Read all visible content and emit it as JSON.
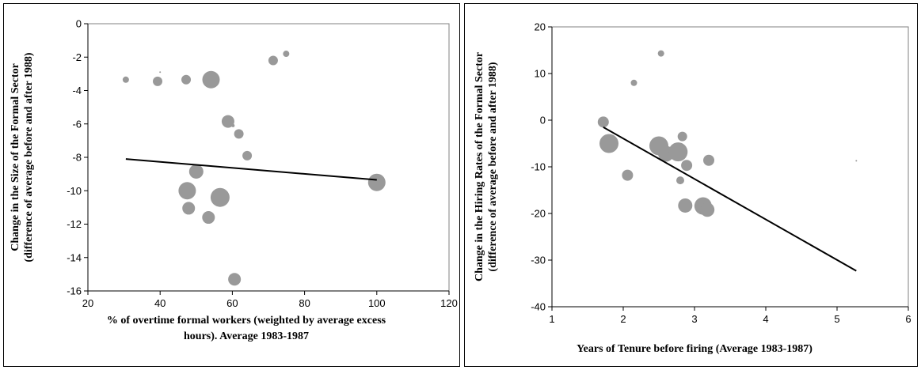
{
  "chart_data": [
    {
      "type": "scatter",
      "title": "",
      "xlabel_lines": [
        "% of overtime formal workers (weighted by average excess",
        "hours). Average 1983-1987"
      ],
      "ylabel_lines": [
        "Change in the Size of the Formal Sector",
        "(difference of average before and after 1988)"
      ],
      "xlim": [
        20,
        120
      ],
      "ylim": [
        -16,
        0
      ],
      "xticks": [
        20,
        40,
        60,
        80,
        100,
        120
      ],
      "yticks": [
        0,
        -2,
        -4,
        -6,
        -8,
        -10,
        -12,
        -14,
        -16
      ],
      "grid": false,
      "marker_color": "#999999",
      "line_color": "#000000",
      "points": [
        {
          "x": 30.5,
          "y": -3.35,
          "size": 4
        },
        {
          "x": 40.0,
          "y": -2.9,
          "size": 1
        },
        {
          "x": 39.3,
          "y": -3.45,
          "size": 6
        },
        {
          "x": 47.2,
          "y": -3.35,
          "size": 6
        },
        {
          "x": 54.1,
          "y": -3.35,
          "size": 11
        },
        {
          "x": 71.3,
          "y": -2.2,
          "size": 6
        },
        {
          "x": 74.9,
          "y": -1.8,
          "size": 4
        },
        {
          "x": 58.8,
          "y": -5.85,
          "size": 8
        },
        {
          "x": 60.2,
          "y": -6.1,
          "size": 2
        },
        {
          "x": 61.8,
          "y": -6.6,
          "size": 6
        },
        {
          "x": 64.1,
          "y": -7.9,
          "size": 6
        },
        {
          "x": 50.0,
          "y": -8.85,
          "size": 9
        },
        {
          "x": 47.5,
          "y": -10.0,
          "size": 11
        },
        {
          "x": 56.6,
          "y": -10.4,
          "size": 12
        },
        {
          "x": 47.9,
          "y": -11.05,
          "size": 8
        },
        {
          "x": 53.4,
          "y": -11.6,
          "size": 8
        },
        {
          "x": 60.6,
          "y": -15.3,
          "size": 8
        },
        {
          "x": 100.0,
          "y": -9.5,
          "size": 11
        }
      ],
      "trendline": {
        "x": [
          30.5,
          100
        ],
        "y": [
          -8.1,
          -9.35
        ]
      }
    },
    {
      "type": "scatter",
      "title": "",
      "xlabel_lines": [
        "Years of Tenure before firing (Average 1983-1987)"
      ],
      "ylabel_lines": [
        "Change in the Hiring Rates of the Formal Sector",
        "(difference of average before and after 1988)"
      ],
      "xlim": [
        1,
        6
      ],
      "ylim": [
        -40,
        20
      ],
      "xticks": [
        1,
        2,
        3,
        4,
        5,
        6
      ],
      "yticks": [
        20,
        10,
        0,
        -10,
        -20,
        -30,
        -40
      ],
      "grid": false,
      "marker_color": "#999999",
      "line_color": "#000000",
      "points": [
        {
          "x": 2.53,
          "y": 14.3,
          "size": 4
        },
        {
          "x": 2.15,
          "y": 8.0,
          "size": 4
        },
        {
          "x": 1.72,
          "y": -0.4,
          "size": 7
        },
        {
          "x": 1.8,
          "y": -5.0,
          "size": 12
        },
        {
          "x": 2.06,
          "y": -11.8,
          "size": 7
        },
        {
          "x": 2.5,
          "y": -5.5,
          "size": 12
        },
        {
          "x": 2.6,
          "y": -7.2,
          "size": 10
        },
        {
          "x": 2.77,
          "y": -6.8,
          "size": 12
        },
        {
          "x": 2.83,
          "y": -3.5,
          "size": 6
        },
        {
          "x": 2.89,
          "y": -9.7,
          "size": 7
        },
        {
          "x": 2.8,
          "y": -12.9,
          "size": 5
        },
        {
          "x": 2.87,
          "y": -18.3,
          "size": 9
        },
        {
          "x": 3.12,
          "y": -18.4,
          "size": 11
        },
        {
          "x": 3.2,
          "y": -8.6,
          "size": 7
        },
        {
          "x": 3.18,
          "y": -19.2,
          "size": 9
        },
        {
          "x": 5.27,
          "y": -8.7,
          "size": 1
        }
      ],
      "trendline": {
        "x": [
          1.72,
          5.27
        ],
        "y": [
          -1.5,
          -32.3
        ]
      }
    }
  ]
}
